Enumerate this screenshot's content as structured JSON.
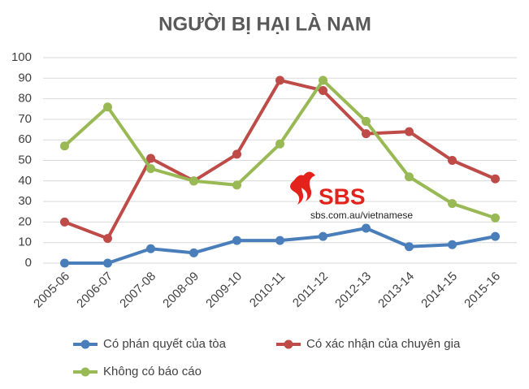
{
  "chart_data": {
    "type": "line",
    "title": "NGƯỜI BỊ HẠI LÀ NAM",
    "categories": [
      "2005-06",
      "2006-07",
      "2007-08",
      "2008-09",
      "2009-10",
      "2010-11",
      "2011-12",
      "2012-13",
      "2013-14",
      "2014-15",
      "2015-16"
    ],
    "series": [
      {
        "name": "Có phán quyết của tòa",
        "color": "#4a7ebb",
        "values": [
          0,
          0,
          7,
          5,
          11,
          11,
          13,
          17,
          8,
          9,
          13
        ]
      },
      {
        "name": "Có xác nhận của chuyên gia",
        "color": "#be4b48",
        "values": [
          20,
          12,
          51,
          40,
          53,
          89,
          84,
          63,
          64,
          50,
          41
        ]
      },
      {
        "name": "Không có báo cáo",
        "color": "#98b954",
        "values": [
          57,
          76,
          46,
          40,
          38,
          58,
          89,
          69,
          42,
          29,
          22
        ]
      }
    ],
    "ylim": [
      0,
      100
    ],
    "yticks": [
      0,
      10,
      20,
      30,
      40,
      50,
      60,
      70,
      80,
      90,
      100
    ],
    "grid": true,
    "annotations": [
      "SBS",
      "sbs.com.au/vietnamese"
    ]
  }
}
